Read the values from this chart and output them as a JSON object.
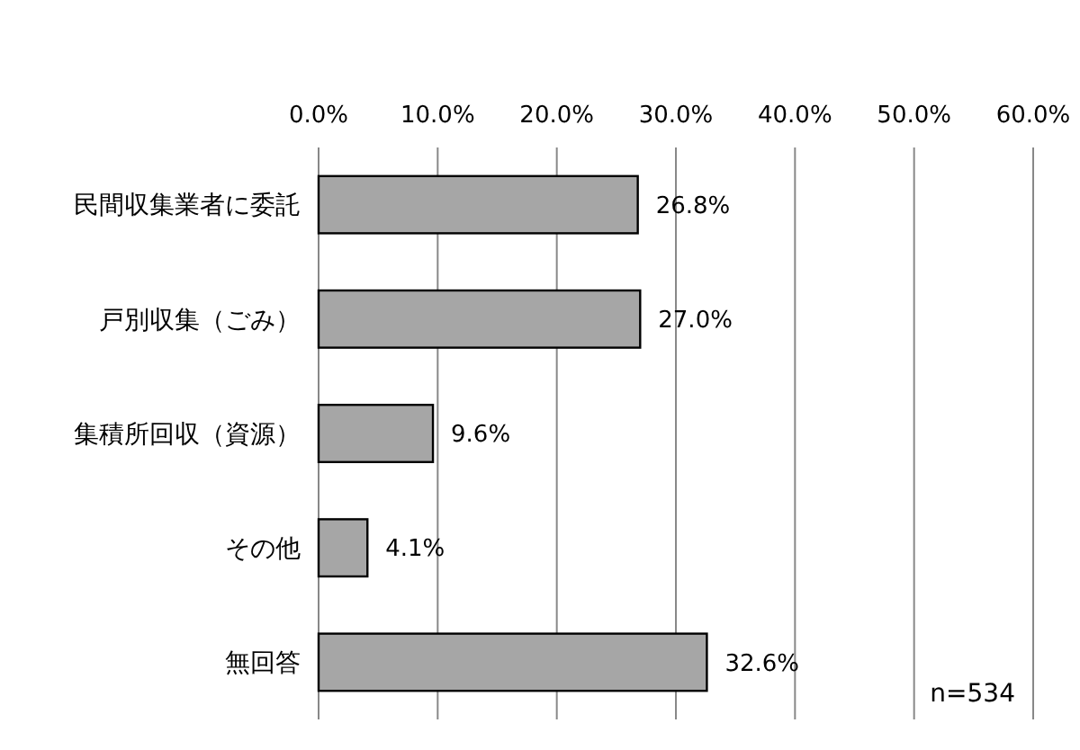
{
  "chart_data": {
    "type": "bar",
    "orientation": "horizontal",
    "categories": [
      "民間収集業者に委託",
      "戸別収集（ごみ）",
      "集積所回収（資源）",
      "その他",
      "無回答"
    ],
    "values": [
      26.8,
      27.0,
      9.6,
      4.1,
      32.6
    ],
    "value_labels": [
      "26.8%",
      "27.0%",
      "9.6%",
      "4.1%",
      "32.6%"
    ],
    "color": "#a6a6a6",
    "xlim": [
      0,
      60
    ],
    "xticks": [
      {
        "value": 0,
        "label": "0.0%"
      },
      {
        "value": 10,
        "label": "10.0%"
      },
      {
        "value": 20,
        "label": "20.0%"
      },
      {
        "value": 30,
        "label": "30.0%"
      },
      {
        "value": 40,
        "label": "40.0%"
      },
      {
        "value": 50,
        "label": "50.0%"
      },
      {
        "value": 60,
        "label": "60.0%"
      }
    ],
    "grid": "x",
    "annotations": [
      "n=534"
    ]
  }
}
